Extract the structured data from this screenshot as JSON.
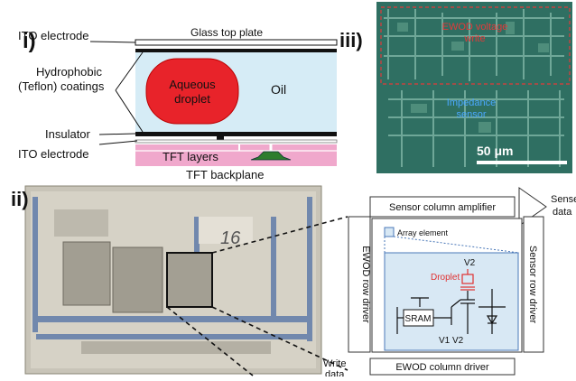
{
  "panel_i": {
    "marker": "i)",
    "labels": {
      "ito_top": "ITO electrode",
      "hydro_1": "Hydrophobic",
      "hydro_2": "(Teflon) coatings",
      "insulator": "Insulator",
      "ito_bottom": "ITO electrode",
      "glass": "Glass top plate",
      "droplet_1": "Aqueous",
      "droplet_2": "droplet",
      "oil": "Oil",
      "tft_layers": "TFT layers",
      "tft_backplane": "TFT backplane"
    },
    "colors": {
      "droplet": "#e8232a",
      "oil": "#d6ecf6",
      "tft": "#f0a8cc",
      "plate": "#111111"
    }
  },
  "panel_iii": {
    "marker": "iii)",
    "ewod_label_1": "EWOD voltage",
    "ewod_label_2": "write",
    "impedance_1": "Impedance",
    "impedance_2": "sensor",
    "scale_bar": "50 μm",
    "colors": {
      "ewod": "#e23a3a",
      "impedance": "#4aa8ff"
    }
  },
  "panel_ii": {
    "marker": "ii)",
    "sensor_col_amp": "Sensor column amplifier",
    "sense_1": "Sense",
    "sense_2": "data",
    "ewod_row_driver": "EWOD row driver",
    "sensor_row_driver": "Sensor row driver",
    "array_element": "Array element",
    "droplet": "Droplet",
    "v2_top": "V2",
    "sram": "SRAM",
    "v1v2": "V1 V2",
    "write_1": "Write",
    "write_2": "data",
    "ewod_col_driver": "EWOD column driver",
    "handwriting": "16",
    "colors": {
      "inset_bg": "#d8e8f4",
      "droplet_label": "#e03030"
    }
  }
}
